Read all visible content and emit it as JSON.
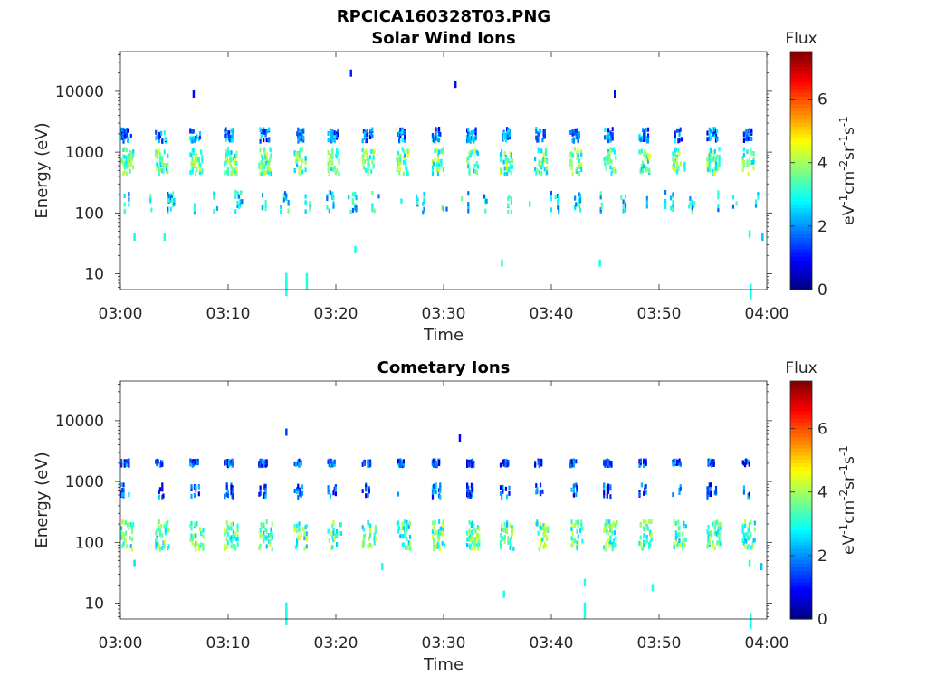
{
  "figure": {
    "filename": "RPCICA160328T03.PNG"
  },
  "colors": {
    "axis": "#262626",
    "colormap": [
      "#00007f",
      "#0000ff",
      "#007fff",
      "#00ffff",
      "#7fff7f",
      "#ffff00",
      "#ff7f00",
      "#ff0000",
      "#7f0000"
    ]
  },
  "chart_data": [
    {
      "type": "heatmap",
      "title": "Solar Wind Ions",
      "xlabel": "Time",
      "ylabel": "Energy (eV)",
      "x_tick_labels": [
        "03:00",
        "03:10",
        "03:20",
        "03:30",
        "03:40",
        "03:50",
        "04:00"
      ],
      "xlim_minutes": [
        0,
        60
      ],
      "y_scale": "log",
      "ylim": [
        5.5,
        45000
      ],
      "y_tick_values": [
        10,
        100,
        1000,
        10000
      ],
      "y_tick_labels": [
        "10",
        "100",
        "1000",
        "10000"
      ],
      "colorbar": {
        "label": "Flux",
        "unit": "eV-1cm-2sr-1s-1",
        "range": [
          0,
          7.5
        ],
        "ticks": [
          0,
          2,
          4,
          6
        ],
        "tick_labels": [
          "0",
          "2",
          "4",
          "6"
        ]
      },
      "bands": [
        {
          "energy": 700,
          "spread": 1.45,
          "level": 3.4,
          "density": 0.95,
          "xstart": 0,
          "period": 3.2,
          "duty": 0.35
        },
        {
          "energy": 1900,
          "spread": 1.2,
          "level": 1.8,
          "density": 0.75,
          "xstart": 0,
          "period": 3.2,
          "duty": 0.3
        },
        {
          "energy": 150,
          "spread": 1.35,
          "level": 2.6,
          "density": 0.3,
          "xstart": 0,
          "period": 2.1,
          "duty": 0.4
        }
      ],
      "isolated_points": [
        {
          "t": 21.3,
          "e": 20000,
          "v": 1.2
        },
        {
          "t": 31.0,
          "e": 13000,
          "v": 1.0
        },
        {
          "t": 6.7,
          "e": 9000,
          "v": 1.0
        },
        {
          "t": 45.8,
          "e": 9000,
          "v": 1.0
        },
        {
          "t": 15.3,
          "e": 9,
          "v": 3.0
        },
        {
          "t": 15.3,
          "e": 7,
          "v": 3.0
        },
        {
          "t": 17.2,
          "e": 9,
          "v": 3.0
        },
        {
          "t": 35.3,
          "e": 15,
          "v": 3.2
        },
        {
          "t": 44.4,
          "e": 15,
          "v": 3.0
        },
        {
          "t": 1.2,
          "e": 40,
          "v": 2.8
        },
        {
          "t": 4.0,
          "e": 40,
          "v": 3.0
        },
        {
          "t": 58.3,
          "e": 45,
          "v": 3.0
        },
        {
          "t": 59.5,
          "e": 40,
          "v": 2.4
        },
        {
          "t": 21.7,
          "e": 25,
          "v": 3.0
        },
        {
          "t": 58.4,
          "e": 6,
          "v": 3.0
        }
      ]
    },
    {
      "type": "heatmap",
      "title": "Cometary Ions",
      "xlabel": "Time",
      "ylabel": "Energy (eV)",
      "x_tick_labels": [
        "03:00",
        "03:10",
        "03:20",
        "03:30",
        "03:40",
        "03:50",
        "04:00"
      ],
      "xlim_minutes": [
        0,
        60
      ],
      "y_scale": "log",
      "ylim": [
        5.5,
        45000
      ],
      "y_tick_values": [
        10,
        100,
        1000,
        10000
      ],
      "y_tick_labels": [
        "10",
        "100",
        "1000",
        "10000"
      ],
      "colorbar": {
        "label": "Flux",
        "unit": "eV-1cm-2sr-1s-1",
        "range": [
          0,
          7.5
        ],
        "ticks": [
          0,
          2,
          4,
          6
        ],
        "tick_labels": [
          "0",
          "2",
          "4",
          "6"
        ]
      },
      "bands": [
        {
          "energy": 130,
          "spread": 1.5,
          "level": 3.4,
          "density": 0.9,
          "xstart": 0,
          "period": 3.2,
          "duty": 0.38
        },
        {
          "energy": 2000,
          "spread": 1.08,
          "level": 1.4,
          "density": 0.8,
          "xstart": 0,
          "period": 3.2,
          "duty": 0.22
        },
        {
          "energy": 700,
          "spread": 1.2,
          "level": 1.5,
          "density": 0.55,
          "xstart": 0,
          "period": 3.2,
          "duty": 0.25
        }
      ],
      "isolated_points": [
        {
          "t": 15.3,
          "e": 6500,
          "v": 1.4
        },
        {
          "t": 31.4,
          "e": 5200,
          "v": 1.0
        },
        {
          "t": 15.3,
          "e": 9,
          "v": 3.0
        },
        {
          "t": 15.3,
          "e": 7,
          "v": 3.0
        },
        {
          "t": 35.5,
          "e": 14,
          "v": 3.0
        },
        {
          "t": 43.0,
          "e": 9,
          "v": 3.0
        },
        {
          "t": 43.0,
          "e": 22,
          "v": 3.0
        },
        {
          "t": 49.3,
          "e": 18,
          "v": 3.0
        },
        {
          "t": 24.2,
          "e": 40,
          "v": 3.0
        },
        {
          "t": 1.2,
          "e": 45,
          "v": 2.6
        },
        {
          "t": 58.4,
          "e": 6,
          "v": 3.0
        },
        {
          "t": 58.3,
          "e": 45,
          "v": 3.0
        },
        {
          "t": 59.4,
          "e": 40,
          "v": 2.4
        }
      ]
    }
  ]
}
